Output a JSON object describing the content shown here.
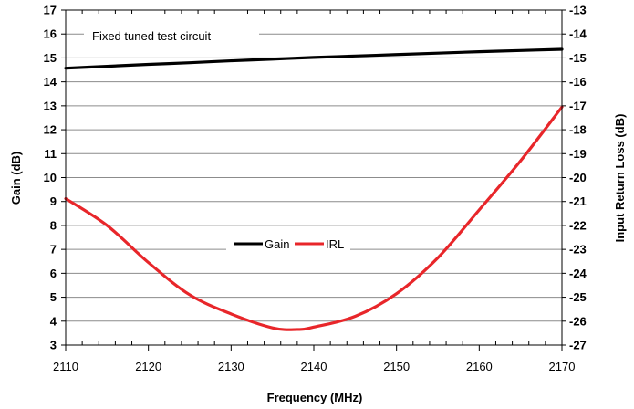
{
  "chart_data": {
    "type": "line",
    "annotation": "Fixed tuned test circuit",
    "xlabel": "Frequency (MHz)",
    "ylabel": "Gain (dB)",
    "y2label": "Input Return Loss (dB)",
    "xlim": [
      2110,
      2170
    ],
    "ylim": [
      3,
      17
    ],
    "y2lim": [
      -27,
      -13
    ],
    "x_ticks": [
      2110,
      2120,
      2130,
      2140,
      2150,
      2160,
      2170
    ],
    "y_ticks": [
      3,
      4,
      5,
      6,
      7,
      8,
      9,
      10,
      11,
      12,
      13,
      14,
      15,
      16,
      17
    ],
    "y2_ticks": [
      -27,
      -26,
      -25,
      -24,
      -23,
      -22,
      -21,
      -20,
      -19,
      -18,
      -17,
      -16,
      -15,
      -14,
      -13
    ],
    "grid": "horizontal",
    "legend": "center",
    "series": [
      {
        "name": "Gain",
        "axis": "left",
        "color": "#000000",
        "x": [
          2110,
          2115,
          2120,
          2125,
          2130,
          2135,
          2140,
          2145,
          2150,
          2155,
          2160,
          2165,
          2170
        ],
        "y": [
          14.57,
          14.65,
          14.73,
          14.8,
          14.88,
          14.95,
          15.02,
          15.08,
          15.14,
          15.2,
          15.26,
          15.31,
          15.36
        ]
      },
      {
        "name": "IRL",
        "axis": "right",
        "color": "#e8262a",
        "x": [
          2110,
          2115,
          2120,
          2125,
          2130,
          2135,
          2138,
          2140,
          2145,
          2150,
          2155,
          2160,
          2165,
          2170
        ],
        "y": [
          -20.88,
          -22.0,
          -23.55,
          -24.9,
          -25.7,
          -26.28,
          -26.35,
          -26.25,
          -25.8,
          -24.85,
          -23.35,
          -21.35,
          -19.3,
          -17.05
        ]
      }
    ]
  }
}
